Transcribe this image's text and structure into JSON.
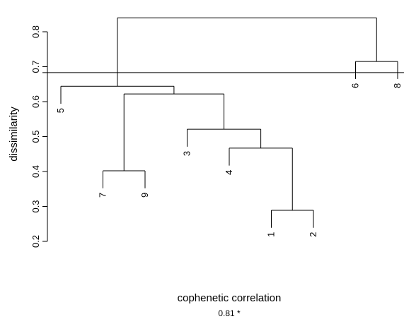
{
  "chart_data": {
    "type": "dendrogram",
    "ylabel": "dissimilarity",
    "xlabel": "cophenetic correlation",
    "subtitle": "0.81 *",
    "ylim": [
      0.2,
      0.8
    ],
    "yticks": [
      0.2,
      0.3,
      0.4,
      0.5,
      0.6,
      0.7,
      0.8
    ],
    "leaves": [
      "5",
      "7",
      "9",
      "3",
      "4",
      "1",
      "2",
      "6",
      "8"
    ],
    "merges": [
      {
        "children": [
          5,
          6
        ],
        "height": 0.289
      },
      {
        "children": [
          1,
          2
        ],
        "height": 0.402
      },
      {
        "children": [
          4,
          9
        ],
        "height": 0.467
      },
      {
        "children": [
          3,
          11
        ],
        "height": 0.521
      },
      {
        "children": [
          10,
          12
        ],
        "height": 0.622
      },
      {
        "children": [
          0,
          13
        ],
        "height": 0.644
      },
      {
        "children": [
          7,
          8
        ],
        "height": 0.715
      },
      {
        "children": [
          14,
          15
        ],
        "height": 0.84
      }
    ],
    "hang": 0.05,
    "cut_height": 0.683,
    "color": "#000000"
  }
}
